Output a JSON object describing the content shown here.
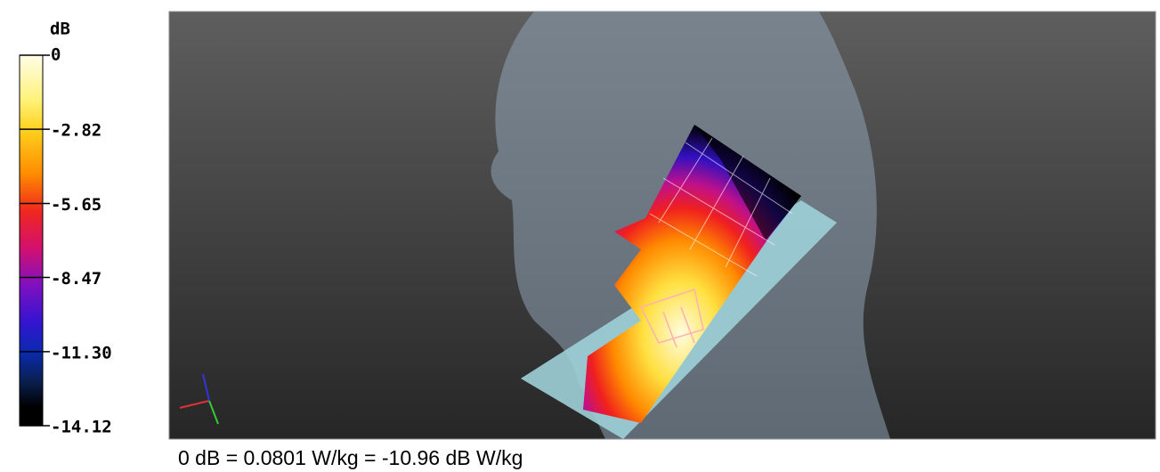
{
  "colorbar": {
    "unit": "dB",
    "lim": [
      -14.12,
      0
    ],
    "ticks": [
      0,
      -2.82,
      -5.65,
      -8.47,
      {
        "value": -11.3,
        "label": "-11.30"
      },
      -14.12
    ]
  },
  "caption": "0 dB = 0.0801 W/kg = -10.96 dB W/kg"
}
